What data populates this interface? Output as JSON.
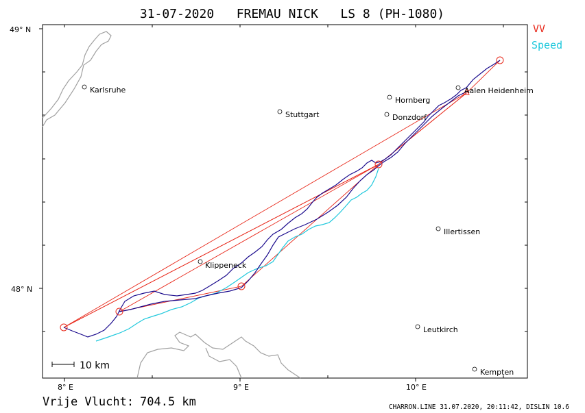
{
  "title": "31-07-2020   FREMAU NICK   LS 8 (PH-1080)",
  "legend": {
    "vv": {
      "label": "VV",
      "color": "#e8281a"
    },
    "speed": {
      "label": "Speed",
      "color": "#1ec8dc"
    }
  },
  "axes": {
    "x_labels": [
      "8° E",
      "9° E",
      "10° E"
    ],
    "y_labels": [
      "49° N",
      "48° N"
    ]
  },
  "scale_bar": {
    "label": "10 km"
  },
  "towns": [
    {
      "name": "Karlsruhe"
    },
    {
      "name": "Stuttgart"
    },
    {
      "name": "Hornberg"
    },
    {
      "name": "Donzdorf"
    },
    {
      "name": "Aalen Heidenheim"
    },
    {
      "name": "Illertissen"
    },
    {
      "name": "Klippeneck"
    },
    {
      "name": "Leutkirch"
    },
    {
      "name": "Kempten"
    }
  ],
  "footer": {
    "distance_label": "Vrije Vlucht:",
    "distance_value": "704.5 km",
    "credit": "CHARRON.LINE 31.07.2020, 20:11:42, DISLIN 10.6"
  },
  "colors": {
    "track": "#1a0a8c",
    "border": "#a0a0a0",
    "frame": "#000000"
  }
}
